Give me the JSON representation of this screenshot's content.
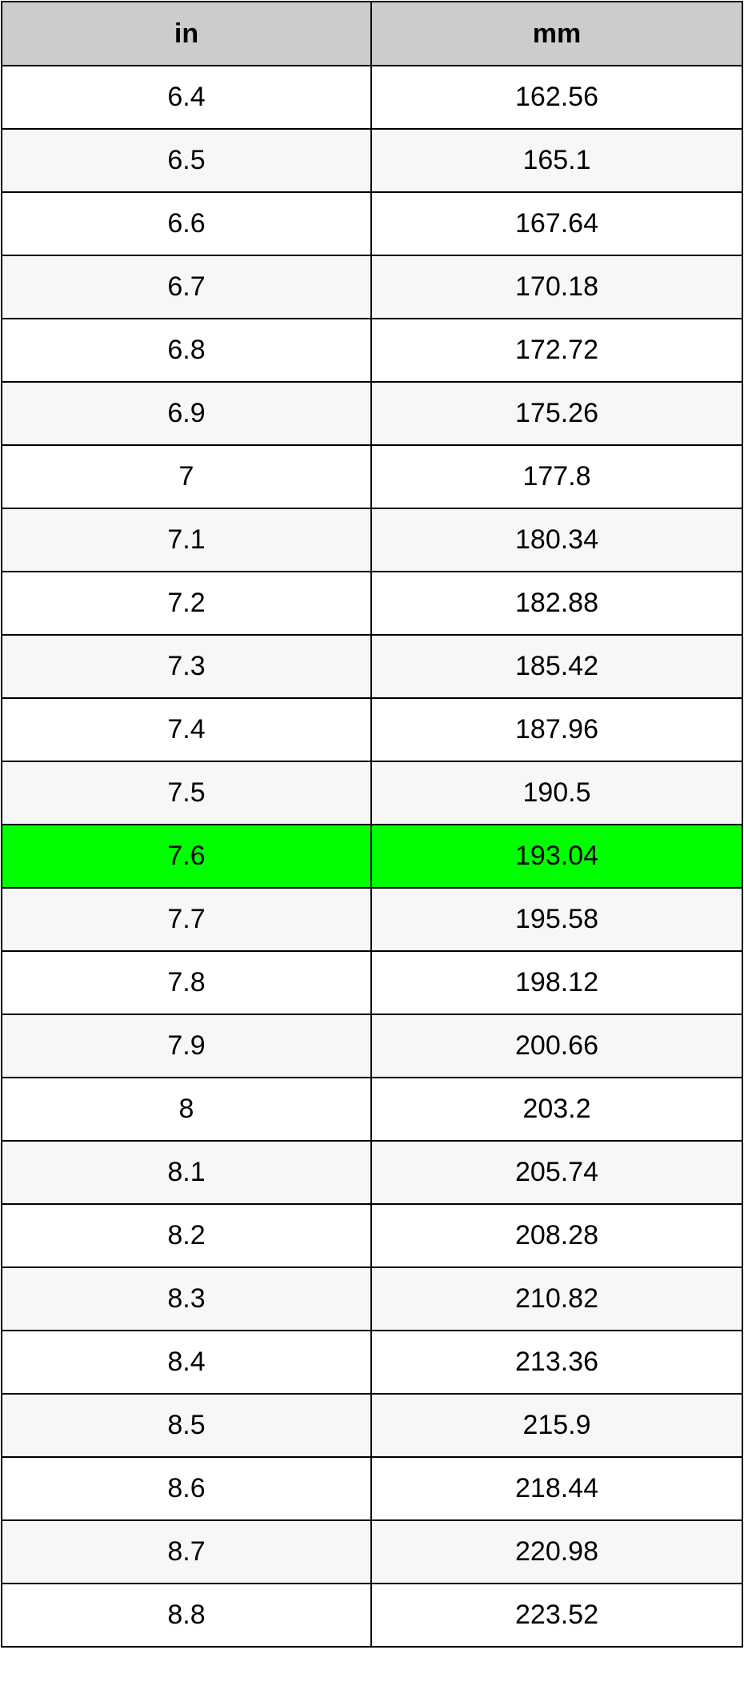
{
  "table": {
    "headers": [
      "in",
      "mm"
    ],
    "highlight_color": "#00ff00",
    "highlighted_row": 12,
    "rows": [
      [
        "6.4",
        "162.56"
      ],
      [
        "6.5",
        "165.1"
      ],
      [
        "6.6",
        "167.64"
      ],
      [
        "6.7",
        "170.18"
      ],
      [
        "6.8",
        "172.72"
      ],
      [
        "6.9",
        "175.26"
      ],
      [
        "7",
        "177.8"
      ],
      [
        "7.1",
        "180.34"
      ],
      [
        "7.2",
        "182.88"
      ],
      [
        "7.3",
        "185.42"
      ],
      [
        "7.4",
        "187.96"
      ],
      [
        "7.5",
        "190.5"
      ],
      [
        "7.6",
        "193.04"
      ],
      [
        "7.7",
        "195.58"
      ],
      [
        "7.8",
        "198.12"
      ],
      [
        "7.9",
        "200.66"
      ],
      [
        "8",
        "203.2"
      ],
      [
        "8.1",
        "205.74"
      ],
      [
        "8.2",
        "208.28"
      ],
      [
        "8.3",
        "210.82"
      ],
      [
        "8.4",
        "213.36"
      ],
      [
        "8.5",
        "215.9"
      ],
      [
        "8.6",
        "218.44"
      ],
      [
        "8.7",
        "220.98"
      ],
      [
        "8.8",
        "223.52"
      ]
    ]
  }
}
